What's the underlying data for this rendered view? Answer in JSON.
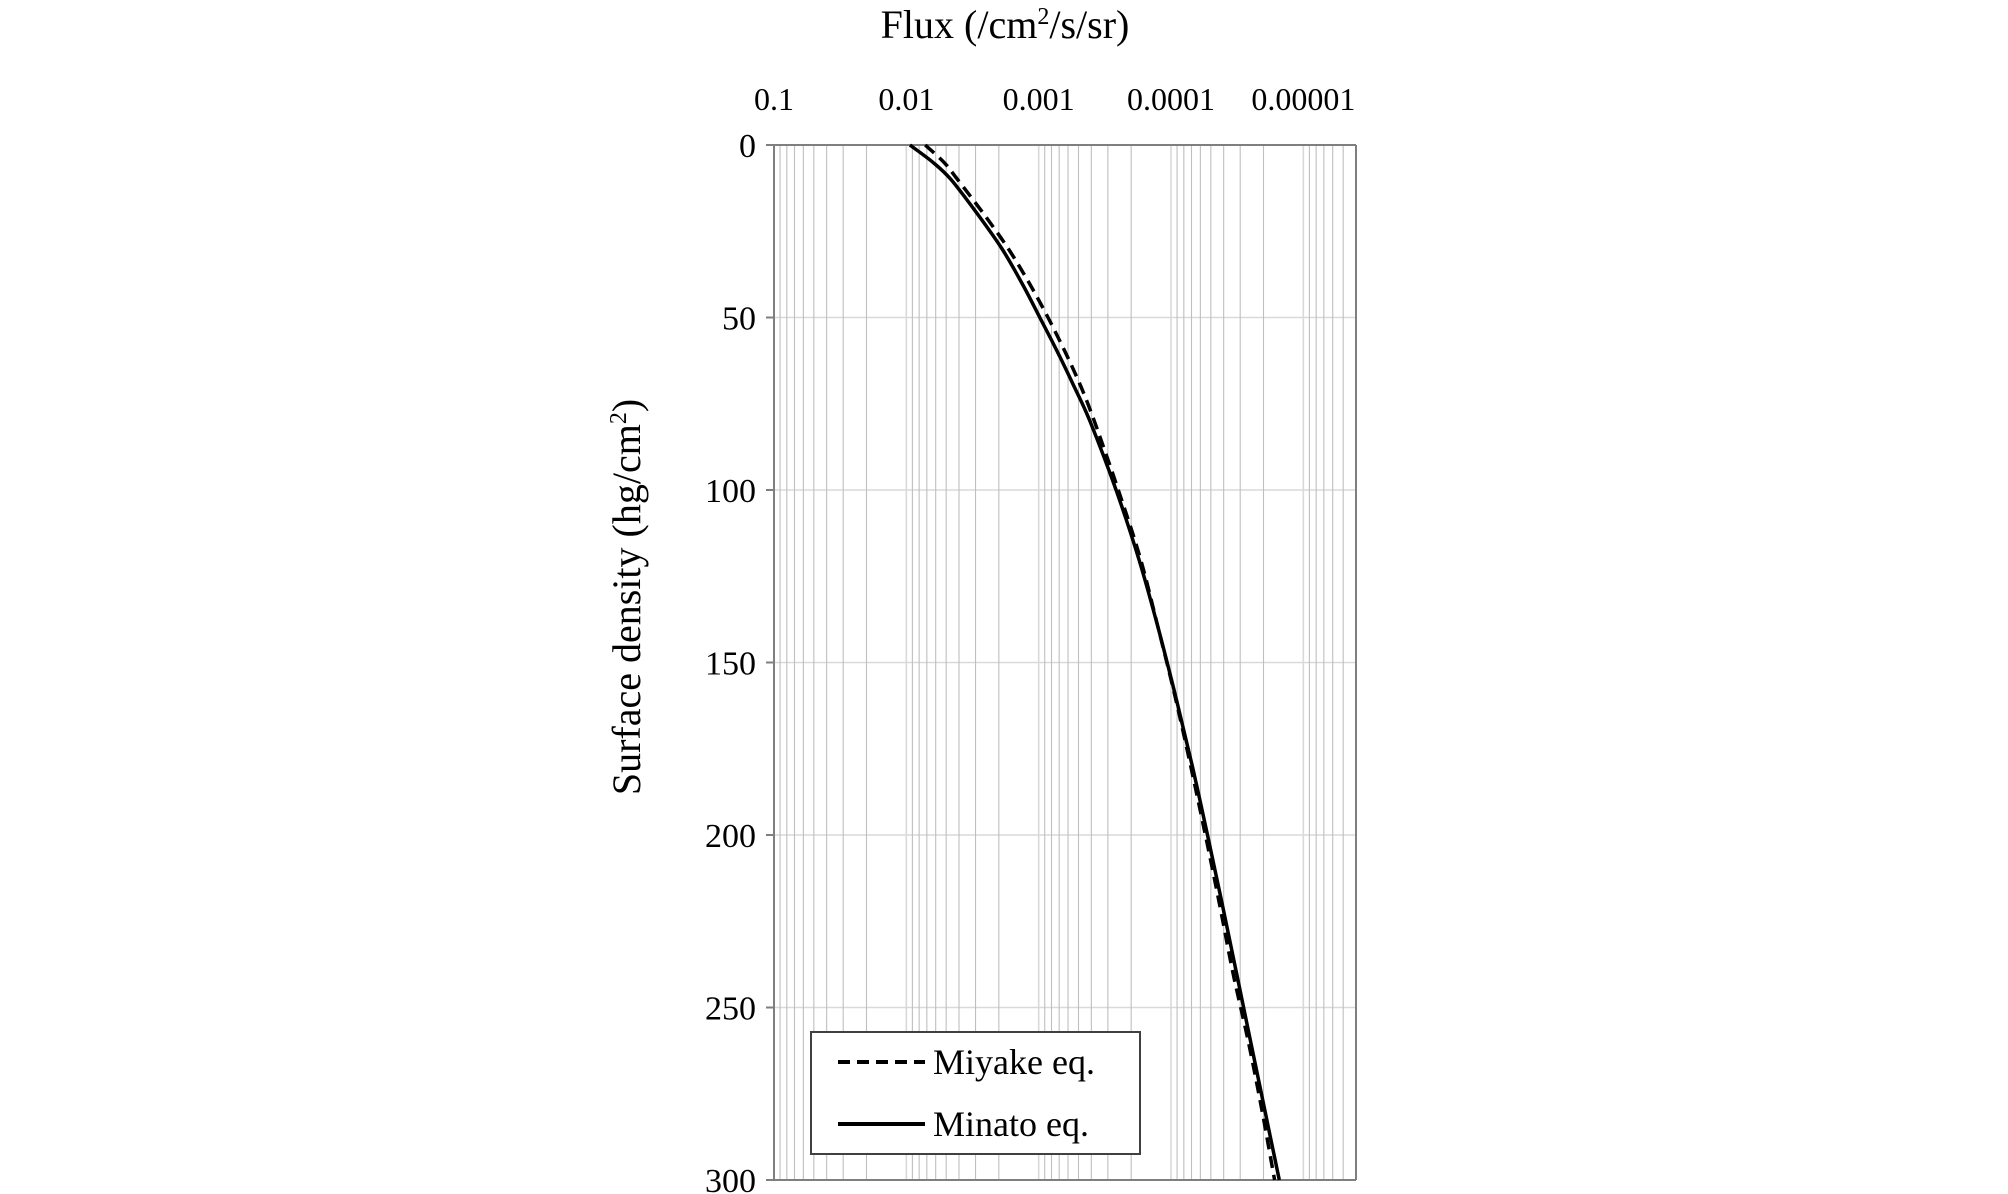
{
  "chart_data": {
    "type": "line",
    "x_title": "Flux (/cm",
    "x_title_sup": "2",
    "x_title_tail": "/s/sr)",
    "y_title": "Surface density (hg/cm",
    "y_title_sup": "2",
    "y_title_tail": ")",
    "x_scale": "log",
    "x_reversed": true,
    "x_position": "top",
    "xlim": [
      0.1,
      4e-06
    ],
    "x_ticks": [
      0.1,
      0.01,
      0.001,
      0.0001,
      1e-05
    ],
    "x_tick_labels": [
      "0.1",
      "0.01",
      "0.001",
      "0.0001",
      "0.00001"
    ],
    "y_reversed": true,
    "ylim": [
      0,
      300
    ],
    "y_ticks": [
      0,
      50,
      100,
      150,
      200,
      250,
      300
    ],
    "y_tick_labels": [
      "0",
      "50",
      "100",
      "150",
      "200",
      "250",
      "300"
    ],
    "grid": true,
    "legend_position": "bottom-left",
    "series": [
      {
        "name": "Miyake eq.",
        "style": "dashed",
        "color": "#000000",
        "points": [
          {
            "y": 0,
            "x": 0.0072
          },
          {
            "y": 5,
            "x": 0.0052
          },
          {
            "y": 10,
            "x": 0.0041
          },
          {
            "y": 20,
            "x": 0.0026
          },
          {
            "y": 30,
            "x": 0.0017
          },
          {
            "y": 40,
            "x": 0.00118
          },
          {
            "y": 50,
            "x": 0.00085
          },
          {
            "y": 60,
            "x": 0.00063
          },
          {
            "y": 70,
            "x": 0.00048
          },
          {
            "y": 80,
            "x": 0.00038
          },
          {
            "y": 100,
            "x": 0.00025
          },
          {
            "y": 120,
            "x": 0.00017
          },
          {
            "y": 140,
            "x": 0.000125
          },
          {
            "y": 160,
            "x": 9.3e-05
          },
          {
            "y": 180,
            "x": 7.1e-05
          },
          {
            "y": 200,
            "x": 5.5e-05
          },
          {
            "y": 220,
            "x": 4.3e-05
          },
          {
            "y": 240,
            "x": 3.4e-05
          },
          {
            "y": 260,
            "x": 2.6e-05
          },
          {
            "y": 280,
            "x": 2.05e-05
          },
          {
            "y": 300,
            "x": 1.65e-05
          }
        ]
      },
      {
        "name": "Minato eq.",
        "style": "solid",
        "color": "#000000",
        "points": [
          {
            "y": 0,
            "x": 0.0094
          },
          {
            "y": 5,
            "x": 0.0063
          },
          {
            "y": 10,
            "x": 0.0046
          },
          {
            "y": 20,
            "x": 0.0029
          },
          {
            "y": 30,
            "x": 0.0019
          },
          {
            "y": 40,
            "x": 0.00134
          },
          {
            "y": 50,
            "x": 0.00098
          },
          {
            "y": 60,
            "x": 0.00072
          },
          {
            "y": 70,
            "x": 0.00054
          },
          {
            "y": 80,
            "x": 0.00041
          },
          {
            "y": 100,
            "x": 0.00026
          },
          {
            "y": 120,
            "x": 0.000175
          },
          {
            "y": 140,
            "x": 0.000125
          },
          {
            "y": 160,
            "x": 9.2e-05
          },
          {
            "y": 180,
            "x": 6.9e-05
          },
          {
            "y": 200,
            "x": 5.3e-05
          },
          {
            "y": 220,
            "x": 4.1e-05
          },
          {
            "y": 240,
            "x": 3.2e-05
          },
          {
            "y": 260,
            "x": 2.5e-05
          },
          {
            "y": 280,
            "x": 1.95e-05
          },
          {
            "y": 300,
            "x": 1.52e-05
          }
        ]
      }
    ],
    "colors": {
      "major_grid": "#d9d9d9",
      "minor_grid": "#bfbfbf",
      "axis": "#7f7f7f",
      "legend_border": "#404040"
    }
  }
}
